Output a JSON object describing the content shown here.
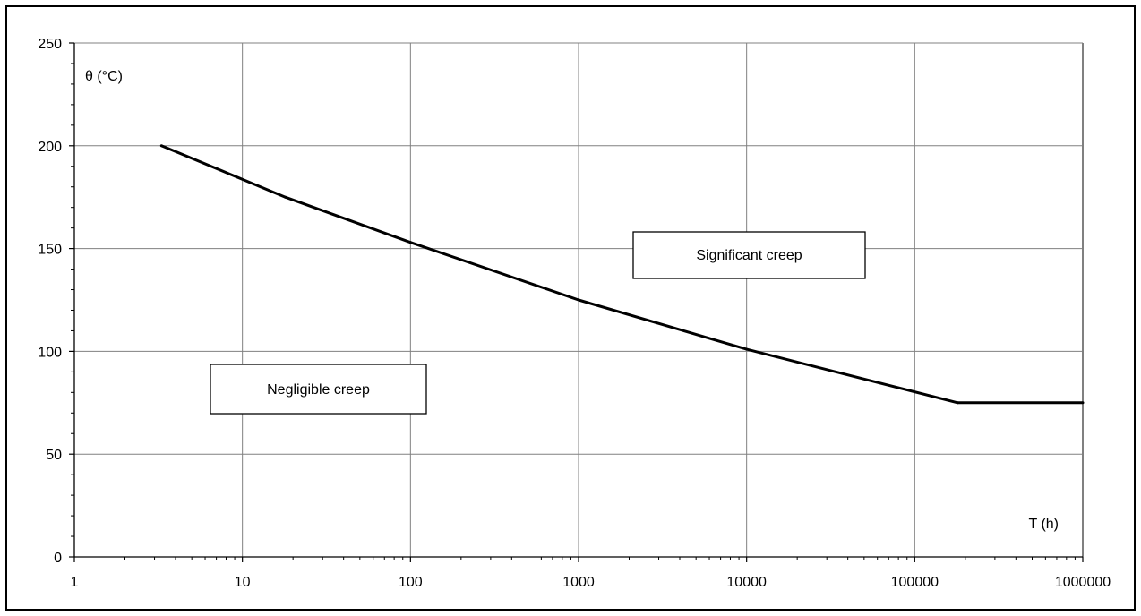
{
  "chart_data": {
    "type": "line",
    "title": "",
    "xlabel": "T (h)",
    "ylabel": "θ (°C)",
    "x_scale": "log",
    "xlim": [
      1,
      1000000
    ],
    "ylim": [
      0,
      250
    ],
    "grid": true,
    "legend": "none",
    "colors": {
      "line": "#000000",
      "grid": "#808080",
      "axis": "#000000"
    },
    "x_tick_labels": [
      "1",
      "10",
      "100",
      "1000",
      "10000",
      "100000",
      "1000000"
    ],
    "y_tick_labels": [
      "0",
      "50",
      "100",
      "150",
      "200",
      "250"
    ],
    "series": [
      {
        "x": [
          3.3,
          18,
          100,
          1000,
          10000,
          180000,
          1000000
        ],
        "y": [
          200,
          175,
          153,
          125,
          101,
          75,
          75
        ]
      }
    ],
    "annotations": [
      {
        "text": "Significant creep"
      },
      {
        "text": "Negligible creep"
      }
    ]
  }
}
